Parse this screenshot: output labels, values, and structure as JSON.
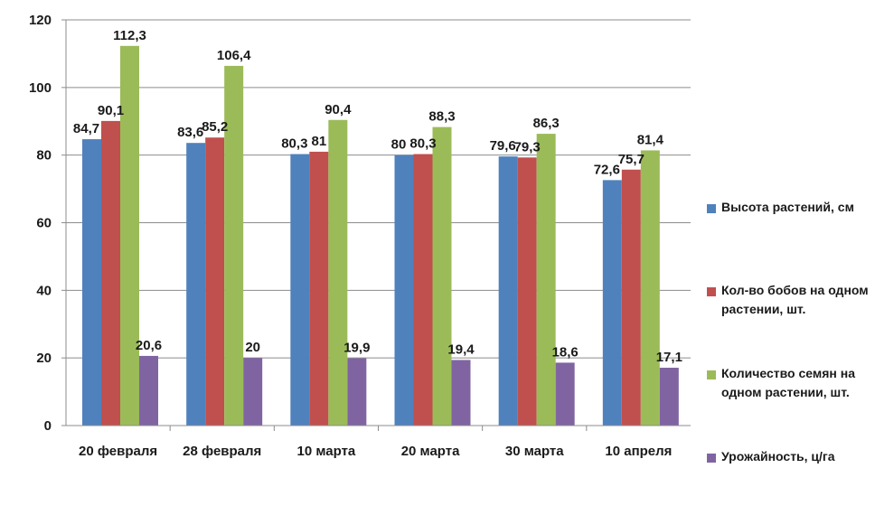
{
  "chart_data": {
    "type": "bar",
    "categories": [
      "20 февраля",
      "28 февраля",
      "10 марта",
      "20 марта",
      "30 марта",
      "10 апреля"
    ],
    "series": [
      {
        "name": "Высота растений, см",
        "color": "#4f81bd",
        "values": [
          84.7,
          83.6,
          80.3,
          80,
          79.6,
          72.6
        ],
        "labels": [
          "84,7",
          "83,6",
          "80,3",
          "80",
          "79,6",
          "72,6"
        ]
      },
      {
        "name": "Кол-во бобов на одном растении, шт.",
        "color": "#c0504d",
        "values": [
          90.1,
          85.2,
          81,
          80.3,
          79.3,
          75.7
        ],
        "labels": [
          "90,1",
          "85,2",
          "81",
          "80,3",
          "79,3",
          "75,7"
        ]
      },
      {
        "name": "Количество семян на одном растении, шт.",
        "color": "#9bbb59",
        "values": [
          112.3,
          106.4,
          90.4,
          88.3,
          86.3,
          81.4
        ],
        "labels": [
          "112,3",
          "106,4",
          "90,4",
          "88,3",
          "86,3",
          "81,4"
        ]
      },
      {
        "name": "Урожайность, ц/га",
        "color": "#8064a2",
        "values": [
          20.6,
          20,
          19.9,
          19.4,
          18.6,
          17.1
        ],
        "labels": [
          "20,6",
          "20",
          "19,9",
          "19,4",
          "18,6",
          "17,1"
        ]
      }
    ],
    "ylim": [
      0,
      120
    ],
    "yticks": [
      0,
      20,
      40,
      60,
      80,
      100,
      120
    ],
    "grid": true,
    "legend_position": "right",
    "title": "",
    "xlabel": "",
    "ylabel": ""
  }
}
